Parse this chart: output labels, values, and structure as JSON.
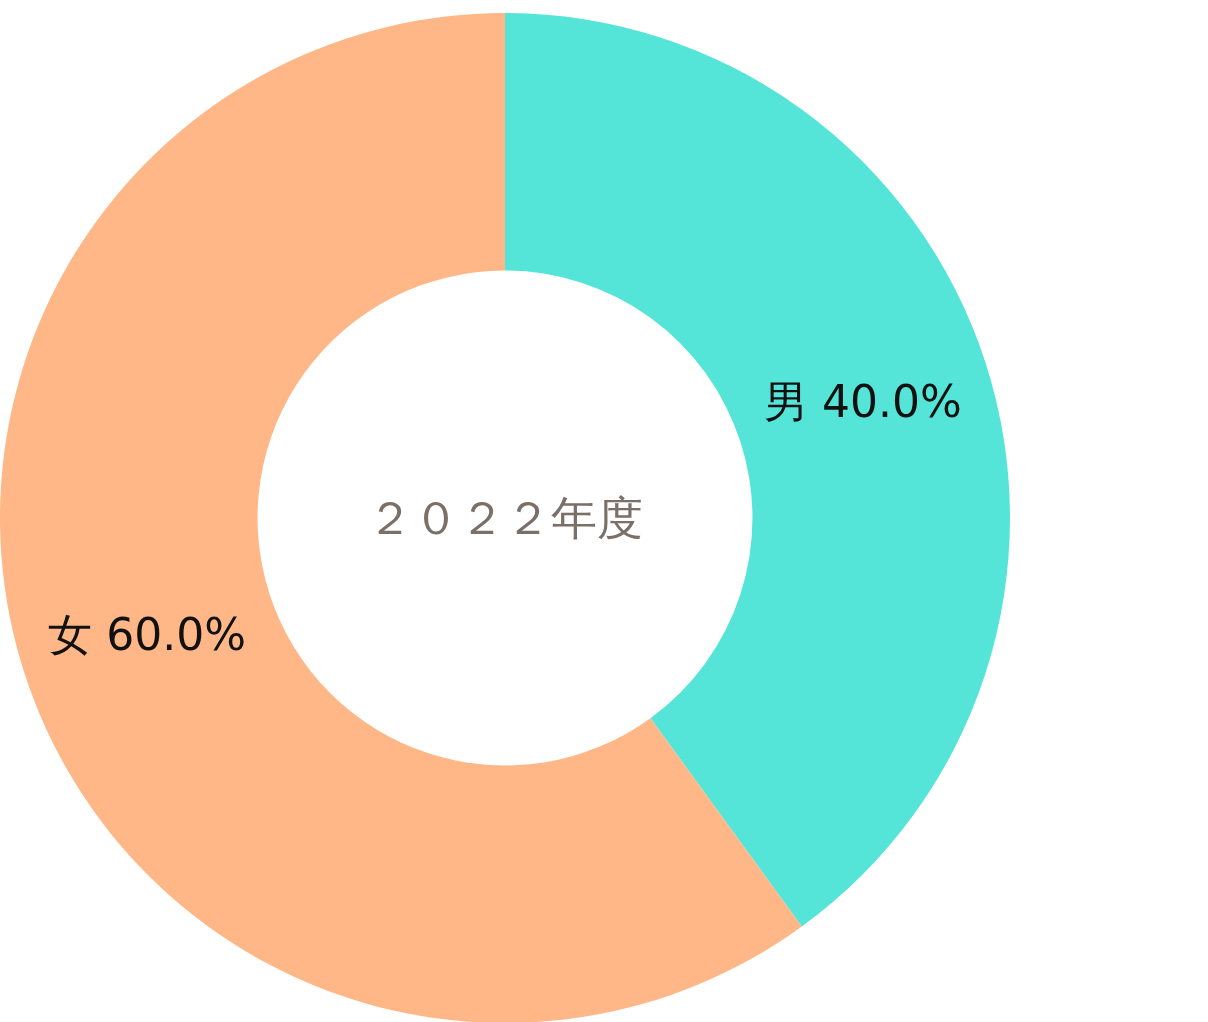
{
  "chart_data": {
    "type": "donut",
    "title": "２０２２年度",
    "categories": [
      "男",
      "女"
    ],
    "values": [
      40,
      60
    ],
    "colors": [
      "#55e5d8",
      "#ffb787"
    ],
    "value_labels": [
      "40.0%",
      "60.0%"
    ]
  }
}
